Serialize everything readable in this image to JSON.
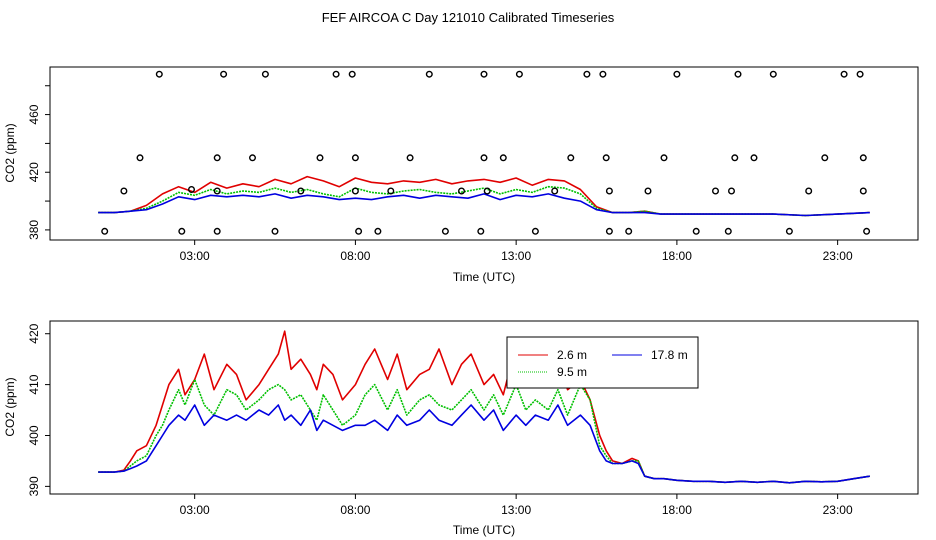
{
  "title": "FEF AIRCOA C  Day 121010  Calibrated Timeseries",
  "colors": {
    "red": "#e00000",
    "green": "#00c000",
    "blue": "#0000e0",
    "axis": "#000000"
  },
  "chart_data": [
    {
      "type": "line",
      "xlabel": "Time (UTC)",
      "ylabel": "CO2 (ppm)",
      "xlim": [
        -1.5,
        25.5
      ],
      "ylim": [
        373,
        493
      ],
      "xticks": [
        3,
        8,
        13,
        18,
        23
      ],
      "xticklabels": [
        "03:00",
        "08:00",
        "13:00",
        "18:00",
        "23:00"
      ],
      "yticks": [
        380,
        400,
        420,
        440,
        460,
        480
      ],
      "yticklabels": [
        "380",
        "",
        "420",
        "",
        "460",
        ""
      ],
      "series": [
        {
          "name": "2.6 m",
          "color": "red",
          "x": [
            0,
            0.5,
            1,
            1.5,
            2,
            2.5,
            3,
            3.5,
            4,
            4.5,
            5,
            5.5,
            6,
            6.5,
            7,
            7.5,
            8,
            8.5,
            9,
            9.5,
            10,
            10.5,
            11,
            11.5,
            12,
            12.5,
            13,
            13.5,
            14,
            14.5,
            15,
            15.5,
            16,
            16.5,
            17,
            17.5,
            18,
            19,
            20,
            21,
            22,
            23,
            24
          ],
          "y": [
            392,
            392,
            393,
            397,
            405,
            410,
            406,
            413,
            409,
            412,
            410,
            415,
            412,
            417,
            414,
            410,
            416,
            413,
            412,
            414,
            413,
            415,
            412,
            414,
            415,
            413,
            416,
            411,
            415,
            414,
            408,
            396,
            392,
            392,
            393,
            391,
            391,
            391,
            391,
            391,
            390,
            391,
            392
          ]
        },
        {
          "name": "9.5 m",
          "color": "green",
          "x": [
            0,
            0.5,
            1,
            1.5,
            2,
            2.5,
            3,
            3.5,
            4,
            4.5,
            5,
            5.5,
            6,
            6.5,
            7,
            7.5,
            8,
            8.5,
            9,
            9.5,
            10,
            10.5,
            11,
            11.5,
            12,
            12.5,
            13,
            13.5,
            14,
            14.5,
            15,
            15.5,
            16,
            16.5,
            17,
            17.5,
            18,
            19,
            20,
            21,
            22,
            23,
            24
          ],
          "y": [
            392,
            392,
            393,
            395,
            400,
            406,
            404,
            408,
            405,
            407,
            406,
            409,
            406,
            408,
            405,
            403,
            409,
            406,
            405,
            407,
            408,
            406,
            405,
            407,
            409,
            405,
            408,
            406,
            410,
            409,
            405,
            395,
            392,
            392,
            393,
            391,
            391,
            391,
            391,
            391,
            390,
            391,
            392
          ]
        },
        {
          "name": "17.8 m",
          "color": "blue",
          "x": [
            0,
            0.5,
            1,
            1.5,
            2,
            2.5,
            3,
            3.5,
            4,
            4.5,
            5,
            5.5,
            6,
            6.5,
            7,
            7.5,
            8,
            8.5,
            9,
            9.5,
            10,
            10.5,
            11,
            11.5,
            12,
            12.5,
            13,
            13.5,
            14,
            14.5,
            15,
            15.5,
            16,
            16.5,
            17,
            17.5,
            18,
            19,
            20,
            21,
            22,
            23,
            24
          ],
          "y": [
            392,
            392,
            393,
            394,
            398,
            403,
            401,
            404,
            403,
            404,
            403,
            405,
            402,
            404,
            403,
            401,
            402,
            401,
            403,
            404,
            402,
            404,
            403,
            402,
            405,
            401,
            404,
            403,
            405,
            402,
            400,
            394,
            392,
            392,
            392,
            391,
            391,
            391,
            391,
            391,
            390,
            391,
            392
          ]
        }
      ],
      "points_label": "discrete samples",
      "points": [
        {
          "x": 0.2,
          "y": 379
        },
        {
          "x": 0.8,
          "y": 407
        },
        {
          "x": 1.3,
          "y": 430
        },
        {
          "x": 1.9,
          "y": 488
        },
        {
          "x": 2.6,
          "y": 379
        },
        {
          "x": 2.9,
          "y": 408
        },
        {
          "x": 3.7,
          "y": 379
        },
        {
          "x": 3.7,
          "y": 430
        },
        {
          "x": 3.9,
          "y": 488
        },
        {
          "x": 3.7,
          "y": 407
        },
        {
          "x": 4.8,
          "y": 430
        },
        {
          "x": 5.2,
          "y": 488
        },
        {
          "x": 5.5,
          "y": 379
        },
        {
          "x": 6.3,
          "y": 407
        },
        {
          "x": 6.9,
          "y": 430
        },
        {
          "x": 7.4,
          "y": 488
        },
        {
          "x": 7.9,
          "y": 488
        },
        {
          "x": 8.0,
          "y": 430
        },
        {
          "x": 8.0,
          "y": 407
        },
        {
          "x": 8.1,
          "y": 379
        },
        {
          "x": 8.7,
          "y": 379
        },
        {
          "x": 9.1,
          "y": 407
        },
        {
          "x": 9.7,
          "y": 430
        },
        {
          "x": 10.3,
          "y": 488
        },
        {
          "x": 10.8,
          "y": 379
        },
        {
          "x": 11.3,
          "y": 407
        },
        {
          "x": 11.9,
          "y": 379
        },
        {
          "x": 12.0,
          "y": 430
        },
        {
          "x": 12.0,
          "y": 488
        },
        {
          "x": 12.1,
          "y": 407
        },
        {
          "x": 12.6,
          "y": 430
        },
        {
          "x": 13.1,
          "y": 488
        },
        {
          "x": 13.6,
          "y": 379
        },
        {
          "x": 14.2,
          "y": 407
        },
        {
          "x": 14.7,
          "y": 430
        },
        {
          "x": 15.2,
          "y": 488
        },
        {
          "x": 15.7,
          "y": 488
        },
        {
          "x": 15.8,
          "y": 430
        },
        {
          "x": 15.9,
          "y": 407
        },
        {
          "x": 15.9,
          "y": 379
        },
        {
          "x": 16.5,
          "y": 379
        },
        {
          "x": 17.1,
          "y": 407
        },
        {
          "x": 17.6,
          "y": 430
        },
        {
          "x": 18.0,
          "y": 488
        },
        {
          "x": 18.6,
          "y": 379
        },
        {
          "x": 19.2,
          "y": 407
        },
        {
          "x": 19.6,
          "y": 379
        },
        {
          "x": 19.7,
          "y": 407
        },
        {
          "x": 19.8,
          "y": 430
        },
        {
          "x": 19.9,
          "y": 488
        },
        {
          "x": 20.4,
          "y": 430
        },
        {
          "x": 21.0,
          "y": 488
        },
        {
          "x": 21.5,
          "y": 379
        },
        {
          "x": 22.1,
          "y": 407
        },
        {
          "x": 22.6,
          "y": 430
        },
        {
          "x": 23.2,
          "y": 488
        },
        {
          "x": 23.7,
          "y": 488
        },
        {
          "x": 23.8,
          "y": 430
        },
        {
          "x": 23.8,
          "y": 407
        },
        {
          "x": 23.9,
          "y": 379
        }
      ]
    },
    {
      "type": "line",
      "xlabel": "Time (UTC)",
      "ylabel": "CO2 (ppm)",
      "xlim": [
        -1.5,
        25.5
      ],
      "ylim": [
        388.5,
        422.5
      ],
      "xticks": [
        3,
        8,
        13,
        18,
        23
      ],
      "xticklabels": [
        "03:00",
        "08:00",
        "13:00",
        "18:00",
        "23:00"
      ],
      "yticks": [
        390,
        400,
        410,
        420
      ],
      "yticklabels": [
        "390",
        "400",
        "410",
        "420"
      ],
      "legend": {
        "position": "top-right",
        "entries": [
          "2.6 m",
          "9.5 m",
          "17.8 m"
        ]
      },
      "series": [
        {
          "name": "2.6 m",
          "color": "red",
          "x": [
            0,
            0.5,
            0.8,
            1,
            1.2,
            1.5,
            1.8,
            2,
            2.2,
            2.5,
            2.7,
            3,
            3.3,
            3.6,
            4,
            4.3,
            4.6,
            5,
            5.3,
            5.6,
            5.8,
            6,
            6.3,
            6.6,
            6.8,
            7,
            7.3,
            7.6,
            8,
            8.3,
            8.6,
            9,
            9.3,
            9.6,
            10,
            10.3,
            10.6,
            11,
            11.3,
            11.6,
            12,
            12.3,
            12.6,
            13,
            13.3,
            13.6,
            14,
            14.3,
            14.6,
            15,
            15.3,
            15.6,
            15.8,
            16,
            16.3,
            16.6,
            16.8,
            17,
            17.3,
            17.6,
            18,
            18.5,
            19,
            19.5,
            20,
            20.5,
            21,
            21.5,
            22,
            22.5,
            23,
            23.5,
            24
          ],
          "y": [
            392.8,
            392.8,
            393.2,
            395,
            397,
            398,
            402,
            406,
            410,
            413,
            408,
            411,
            416,
            409,
            414,
            412,
            407,
            410,
            413,
            416,
            420.5,
            413,
            415,
            412,
            409,
            414,
            412,
            407,
            410,
            414,
            417,
            411,
            416,
            409,
            412,
            413,
            417,
            410,
            414,
            416,
            410,
            412,
            408,
            418,
            410,
            414,
            412,
            415,
            409,
            411,
            407,
            400,
            397,
            395,
            394.5,
            395.5,
            395,
            392,
            391.5,
            391.5,
            391.2,
            391,
            391,
            390.8,
            391,
            390.8,
            391,
            390.7,
            391,
            390.9,
            391,
            391.5,
            392
          ]
        },
        {
          "name": "9.5 m",
          "color": "green",
          "x": [
            0,
            0.5,
            0.8,
            1,
            1.2,
            1.5,
            1.8,
            2,
            2.2,
            2.5,
            2.7,
            3,
            3.3,
            3.6,
            4,
            4.3,
            4.6,
            5,
            5.3,
            5.6,
            5.8,
            6,
            6.3,
            6.6,
            6.8,
            7,
            7.3,
            7.6,
            8,
            8.3,
            8.6,
            9,
            9.3,
            9.6,
            10,
            10.3,
            10.6,
            11,
            11.3,
            11.6,
            12,
            12.3,
            12.6,
            13,
            13.3,
            13.6,
            14,
            14.3,
            14.6,
            15,
            15.3,
            15.6,
            15.8,
            16,
            16.3,
            16.6,
            16.8,
            17,
            17.3,
            17.6,
            18,
            18.5,
            19,
            19.5,
            20,
            20.5,
            21,
            21.5,
            22,
            22.5,
            23,
            23.5,
            24
          ],
          "y": [
            392.8,
            392.8,
            393,
            394,
            395,
            396,
            400,
            402,
            405,
            409,
            406,
            411,
            406,
            404,
            409,
            408,
            405,
            407,
            409,
            410,
            409,
            407,
            408,
            405,
            403,
            408,
            405,
            402,
            404,
            408,
            410,
            405,
            409,
            404,
            407,
            408,
            406,
            405,
            407,
            409,
            405,
            408,
            404,
            410,
            405,
            407,
            405,
            409,
            404,
            410,
            407,
            398,
            396,
            394.5,
            394.5,
            395,
            395,
            392,
            391.5,
            391.5,
            391.2,
            391,
            391,
            390.8,
            391,
            390.8,
            391,
            390.7,
            391,
            390.9,
            391,
            391.5,
            392
          ]
        },
        {
          "name": "17.8 m",
          "color": "blue",
          "x": [
            0,
            0.5,
            0.8,
            1,
            1.2,
            1.5,
            1.8,
            2,
            2.2,
            2.5,
            2.7,
            3,
            3.3,
            3.6,
            4,
            4.3,
            4.6,
            5,
            5.3,
            5.6,
            5.8,
            6,
            6.3,
            6.6,
            6.8,
            7,
            7.3,
            7.6,
            8,
            8.3,
            8.6,
            9,
            9.3,
            9.6,
            10,
            10.3,
            10.6,
            11,
            11.3,
            11.6,
            12,
            12.3,
            12.6,
            13,
            13.3,
            13.6,
            14,
            14.3,
            14.6,
            15,
            15.3,
            15.6,
            15.8,
            16,
            16.3,
            16.6,
            16.8,
            17,
            17.3,
            17.6,
            18,
            18.5,
            19,
            19.5,
            20,
            20.5,
            21,
            21.5,
            22,
            22.5,
            23,
            23.5,
            24
          ],
          "y": [
            392.8,
            392.8,
            393,
            393.5,
            394,
            395,
            398,
            400,
            402,
            404,
            403,
            406,
            402,
            404,
            403,
            404,
            403,
            405,
            404,
            406,
            403,
            404,
            402,
            405,
            401,
            403,
            402,
            401,
            402,
            402,
            403,
            401,
            404,
            402,
            403,
            405,
            403,
            402,
            404,
            406,
            403,
            405,
            401,
            404,
            402,
            404,
            403,
            406,
            402,
            404,
            402,
            397,
            395,
            394.5,
            394.5,
            395,
            394.5,
            392,
            391.5,
            391.5,
            391.2,
            391,
            391,
            390.8,
            391,
            390.8,
            391,
            390.7,
            391,
            390.9,
            391,
            391.5,
            392
          ]
        }
      ]
    }
  ]
}
